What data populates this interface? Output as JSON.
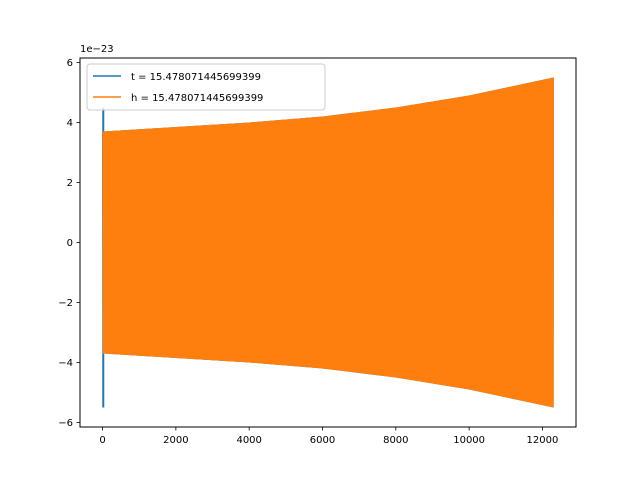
{
  "chart_data": {
    "type": "line",
    "title": "",
    "xlabel": "",
    "ylabel": "",
    "offset_text": "1e−23",
    "xlim": [
      -615,
      12915
    ],
    "ylim": [
      -6.15,
      6.15
    ],
    "x_ticks": [
      0,
      2000,
      4000,
      6000,
      8000,
      10000,
      12000
    ],
    "x_tick_labels": [
      "0",
      "2000",
      "4000",
      "6000",
      "8000",
      "10000",
      "12000"
    ],
    "y_ticks": [
      -6,
      -4,
      -2,
      0,
      2,
      4,
      6
    ],
    "y_tick_labels": [
      "−6",
      "−4",
      "−2",
      "0",
      "2",
      "4",
      "6"
    ],
    "grid": false,
    "legend_position": "upper-left",
    "x_range": [
      0,
      12300
    ],
    "series": [
      {
        "name": "t = 15.478071445699399",
        "color": "#1f77b4",
        "description": "oscillating signal, initial spike near x=0 up to about 4.5 and down to about -5.5, then amplitude growing from about 3.7 to 5.5",
        "envelope_x": [
          0,
          2000,
          4000,
          6000,
          8000,
          10000,
          12300
        ],
        "envelope_amplitude": [
          3.7,
          3.85,
          4.0,
          4.2,
          4.5,
          4.9,
          5.5
        ],
        "spike_x": 20,
        "spike_max": 4.5,
        "spike_min": -5.5
      },
      {
        "name": "h = 15.478071445699399",
        "color": "#ff7f0e",
        "description": "oscillating signal, amplitude growing from about 3.7 to 5.5",
        "envelope_x": [
          0,
          2000,
          4000,
          6000,
          8000,
          10000,
          12300
        ],
        "envelope_amplitude": [
          3.7,
          3.85,
          4.0,
          4.2,
          4.5,
          4.9,
          5.5
        ]
      }
    ]
  }
}
